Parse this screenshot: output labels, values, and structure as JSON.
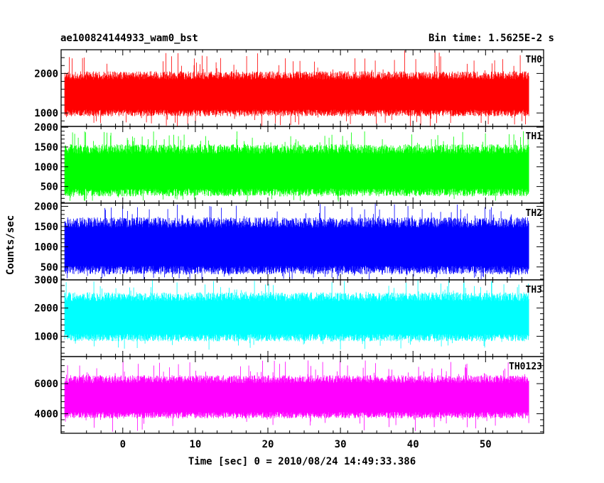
{
  "chart_data": {
    "type": "line",
    "title_left": "ae100824144933_wam0_bst",
    "title_right": "Bin time: 1.5625E-2 s",
    "xlabel": "Time [sec] 0 = 2010/08/24 14:49:33.386",
    "ylabel": "Counts/sec",
    "xlim": [
      -8.5,
      58
    ],
    "x_ticks": [
      0,
      10,
      20,
      30,
      40,
      50
    ],
    "x_range_data": [
      -8,
      56
    ],
    "grid": false,
    "panels": [
      {
        "name": "TH0",
        "color": "#ff0000",
        "ylim": [
          660,
          2600
        ],
        "y_ticks": [
          1000,
          2000
        ],
        "base_low": 1000,
        "base_high": 1950,
        "spike_low": 650,
        "spike_high": 2620,
        "seed": 11
      },
      {
        "name": "TH1",
        "color": "#00ff00",
        "ylim": [
          80,
          2020
        ],
        "y_ticks": [
          500,
          1000,
          1500,
          2000
        ],
        "base_low": 350,
        "base_high": 1450,
        "spike_low": 120,
        "spike_high": 1900,
        "seed": 23
      },
      {
        "name": "TH2",
        "color": "#0000ff",
        "ylim": [
          180,
          2080
        ],
        "y_ticks": [
          500,
          1000,
          1500,
          2000
        ],
        "base_low": 420,
        "base_high": 1600,
        "spike_low": 170,
        "spike_high": 2080,
        "seed": 37
      },
      {
        "name": "TH3",
        "color": "#00ffff",
        "ylim": [
          280,
          3000
        ],
        "y_ticks": [
          1000,
          2000,
          3000
        ],
        "base_low": 950,
        "base_high": 2400,
        "spike_low": 520,
        "spike_high": 3000,
        "seed": 41
      },
      {
        "name": "TH0123",
        "color": "#ff00ff",
        "ylim": [
          2700,
          7800
        ],
        "y_ticks": [
          4000,
          6000
        ],
        "base_low": 3900,
        "base_high": 6300,
        "spike_low": 2800,
        "spike_high": 7550,
        "seed": 53
      }
    ]
  }
}
